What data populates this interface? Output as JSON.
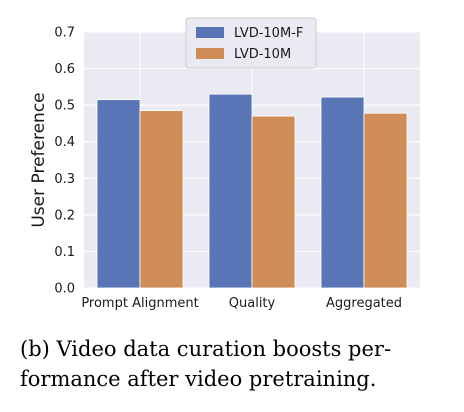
{
  "chart_data": {
    "type": "bar",
    "categories": [
      "Prompt Alignment",
      "Quality",
      "Aggregated"
    ],
    "series": [
      {
        "name": "LVD-10M-F",
        "values": [
          0.515,
          0.53,
          0.522
        ],
        "color": "#5975b5"
      },
      {
        "name": "LVD-10M",
        "values": [
          0.485,
          0.47,
          0.478
        ],
        "color": "#d08c56"
      }
    ],
    "ylabel": "User Preference",
    "ylim": [
      0,
      0.7
    ],
    "yticks": [
      "0.0",
      "0.1",
      "0.2",
      "0.3",
      "0.4",
      "0.5",
      "0.6",
      "0.7"
    ],
    "grid": true,
    "legend_position": "top-center",
    "background": "#eaeaf2"
  },
  "caption": {
    "line1": "(b)  Video data curation boosts per-",
    "line2": "formance after video pretraining."
  }
}
